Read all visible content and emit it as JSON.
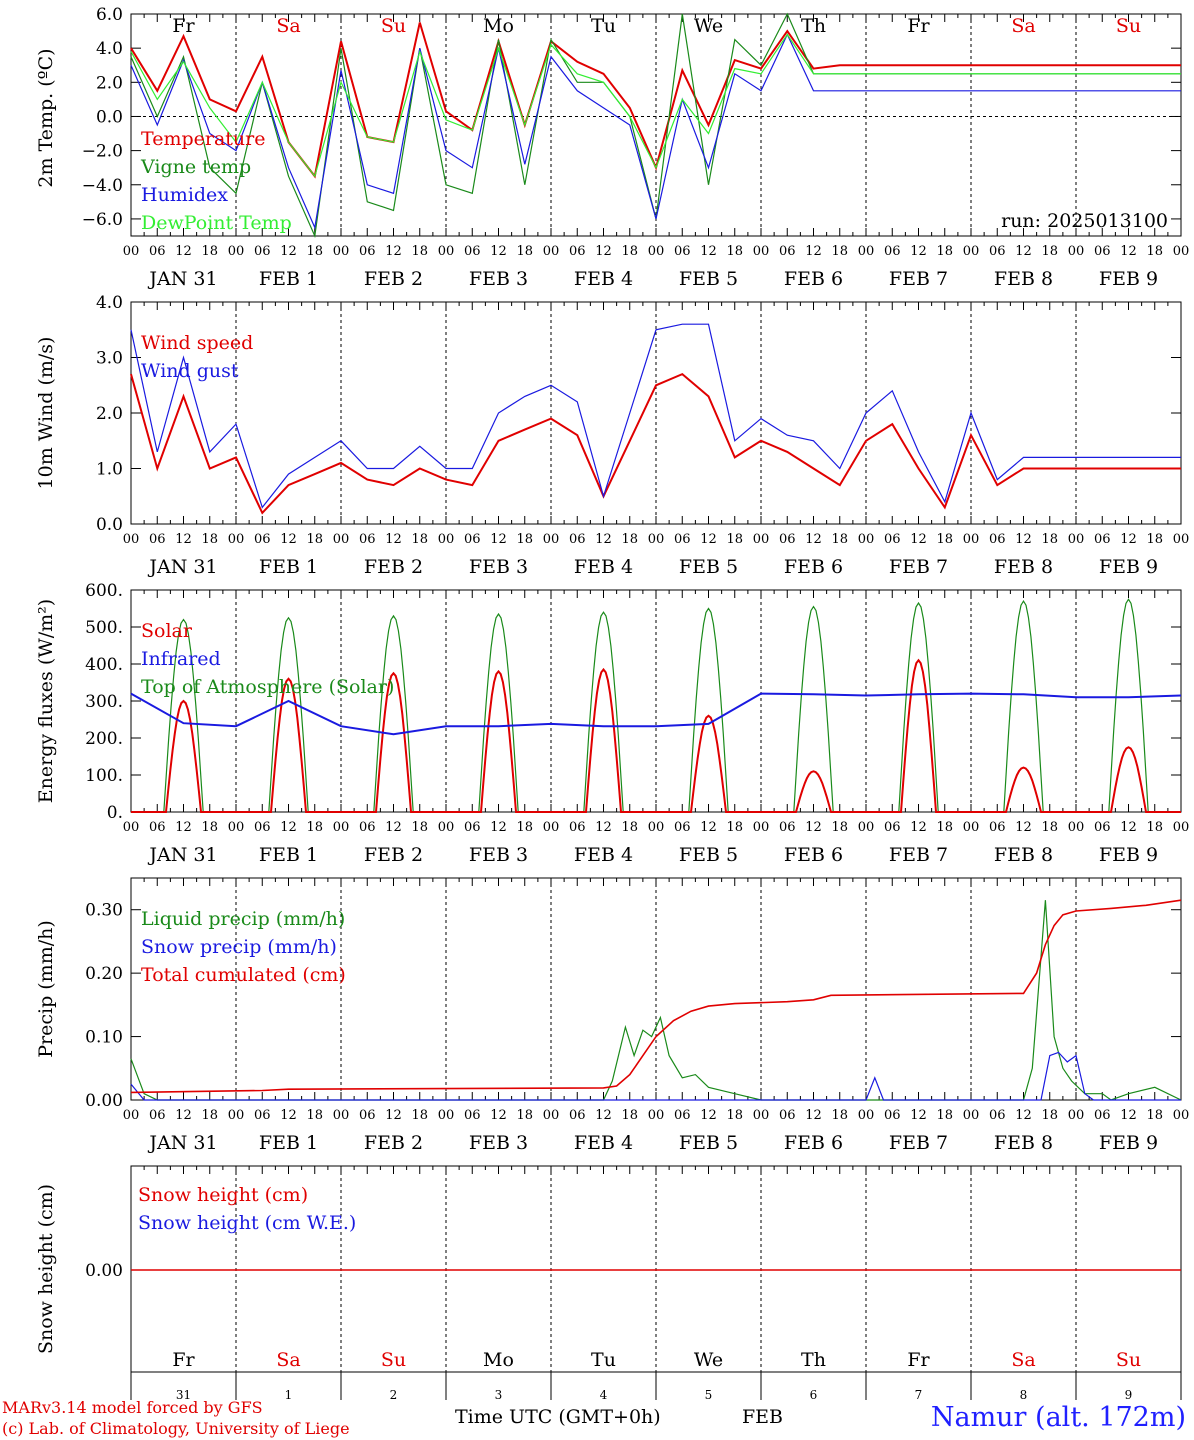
{
  "colors": {
    "red": "#e00000",
    "green": "#1a8a1a",
    "blue": "#1a1ae0",
    "lightgreen": "#33ee33",
    "axis": "#000000"
  },
  "day_ticks": [
    "00",
    "06",
    "12",
    "18"
  ],
  "date_labels": [
    "JAN 31",
    "FEB 1",
    "FEB 2",
    "FEB 3",
    "FEB 4",
    "FEB 5",
    "FEB 6",
    "FEB 7",
    "FEB 8",
    "FEB 9"
  ],
  "weekdays": [
    {
      "label": "Fr",
      "color": "#000000"
    },
    {
      "label": "Sa",
      "color": "#e00000"
    },
    {
      "label": "Su",
      "color": "#e00000"
    },
    {
      "label": "Mo",
      "color": "#000000"
    },
    {
      "label": "Tu",
      "color": "#000000"
    },
    {
      "label": "We",
      "color": "#000000"
    },
    {
      "label": "Th",
      "color": "#000000"
    },
    {
      "label": "Fr",
      "color": "#000000"
    },
    {
      "label": "Sa",
      "color": "#e00000"
    },
    {
      "label": "Su",
      "color": "#e00000"
    }
  ],
  "day_numbers": [
    "31",
    "1",
    "2",
    "3",
    "4",
    "5",
    "6",
    "7",
    "8",
    "9"
  ],
  "chart_data": [
    {
      "type": "line",
      "ylabel": "2m Temp. (ºC)",
      "ylim": [
        -7,
        6
      ],
      "yticks": [
        "6.0",
        "4.0",
        "2.0",
        "0.0",
        "−2.0",
        "−4.0",
        "−6.0"
      ],
      "annotation": "run: 2025013100",
      "x_hours": [
        0,
        6,
        12,
        18,
        24,
        30,
        36,
        42,
        48,
        54,
        60,
        66,
        72,
        78,
        84,
        90,
        96,
        102,
        108,
        114,
        120,
        126,
        132,
        138,
        144,
        150,
        156,
        162,
        168,
        174,
        180,
        186,
        192,
        198,
        204,
        210,
        216,
        222,
        228,
        234,
        240
      ],
      "series": [
        {
          "name": "Temperature",
          "color": "red",
          "values": [
            4.0,
            1.5,
            4.7,
            1.0,
            0.3,
            3.5,
            -1.5,
            -3.5,
            4.4,
            -1.2,
            -1.5,
            5.5,
            0.3,
            -0.8,
            4.4,
            -0.5,
            4.4,
            3.2,
            2.5,
            0.5,
            -3.0,
            2.7,
            -0.5,
            3.3,
            2.8,
            5.0,
            2.8,
            3.0,
            3.0,
            3.0,
            3.0,
            3.0,
            3.0,
            3.0,
            3.0,
            3.0,
            3.0,
            3.0,
            3.0,
            3.0,
            3.0
          ]
        },
        {
          "name": "Vigne temp",
          "color": "green",
          "values": [
            3.5,
            0.0,
            3.5,
            -3.0,
            -4.5,
            2.0,
            -3.5,
            -7.0,
            4.0,
            -5.0,
            -5.5,
            4.0,
            -4.0,
            -4.5,
            4.5,
            -4.0,
            4.5,
            2.0,
            2.0,
            0.0,
            -6.0,
            6.0,
            -4.0,
            4.5,
            3.0,
            6.0,
            2.5,
            2.5,
            2.5,
            2.5,
            2.5,
            2.5,
            2.5,
            2.5,
            2.5,
            2.5,
            2.5,
            2.5,
            2.5,
            2.5,
            2.5
          ]
        },
        {
          "name": "Humidex",
          "color": "blue",
          "values": [
            3.0,
            -0.5,
            3.3,
            -1.0,
            -2.0,
            2.0,
            -3.0,
            -6.5,
            2.7,
            -4.0,
            -4.5,
            4.0,
            -2.0,
            -3.0,
            4.0,
            -2.8,
            3.5,
            1.5,
            0.5,
            -0.5,
            -6.0,
            1.0,
            -3.0,
            2.5,
            1.5,
            4.8,
            1.5,
            1.5,
            1.5,
            1.5,
            1.5,
            1.5,
            1.5,
            1.5,
            1.5,
            1.5,
            1.5,
            1.5,
            1.5,
            1.5,
            1.5
          ]
        },
        {
          "name": "DewPoint Temp",
          "color": "lightgreen",
          "values": [
            3.8,
            1.0,
            3.2,
            0.5,
            -1.5,
            2.0,
            -1.5,
            -3.5,
            2.0,
            -1.2,
            -1.5,
            3.8,
            -0.2,
            -0.8,
            4.0,
            -0.5,
            4.2,
            2.5,
            2.0,
            0.0,
            -3.0,
            1.0,
            -1.0,
            2.8,
            2.5,
            4.8,
            2.5,
            2.5,
            2.5,
            2.5,
            2.5,
            2.5,
            2.5,
            2.5,
            2.5,
            2.5,
            2.5,
            2.5,
            2.5,
            2.5,
            2.5
          ]
        }
      ]
    },
    {
      "type": "line",
      "ylabel": "10m Wind (m/s)",
      "ylim": [
        0,
        4
      ],
      "yticks": [
        "4.0",
        "3.0",
        "2.0",
        "1.0",
        "0.0"
      ],
      "x_hours": [
        0,
        6,
        12,
        18,
        24,
        30,
        36,
        42,
        48,
        54,
        60,
        66,
        72,
        78,
        84,
        90,
        96,
        102,
        108,
        114,
        120,
        126,
        132,
        138,
        144,
        150,
        156,
        162,
        168,
        174,
        180,
        186,
        192,
        198,
        204,
        210,
        216,
        222,
        228,
        234,
        240
      ],
      "series": [
        {
          "name": "Wind speed",
          "color": "red",
          "values": [
            2.7,
            1.0,
            2.3,
            1.0,
            1.2,
            0.2,
            0.7,
            0.9,
            1.1,
            0.8,
            0.7,
            1.0,
            0.8,
            0.7,
            1.5,
            1.7,
            1.9,
            1.6,
            0.5,
            1.5,
            2.5,
            2.7,
            2.3,
            1.2,
            1.5,
            1.3,
            1.0,
            0.7,
            1.5,
            1.8,
            1.0,
            0.3,
            1.6,
            0.7,
            1.0,
            1.0,
            1.0,
            1.0,
            1.0,
            1.0,
            1.0
          ]
        },
        {
          "name": "Wind gust",
          "color": "blue",
          "values": [
            3.5,
            1.3,
            3.0,
            1.3,
            1.8,
            0.3,
            0.9,
            1.2,
            1.5,
            1.0,
            1.0,
            1.4,
            1.0,
            1.0,
            2.0,
            2.3,
            2.5,
            2.2,
            0.5,
            2.0,
            3.5,
            3.6,
            3.6,
            1.5,
            1.9,
            1.6,
            1.5,
            1.0,
            2.0,
            2.4,
            1.3,
            0.4,
            2.0,
            0.8,
            1.2,
            1.2,
            1.2,
            1.2,
            1.2,
            1.2,
            1.2
          ]
        }
      ]
    },
    {
      "type": "line",
      "ylabel": "Energy fluxes (W/m²)",
      "ylim": [
        0,
        600
      ],
      "yticks": [
        "600.",
        "500.",
        "400.",
        "300.",
        "200.",
        "100.",
        "0."
      ],
      "series": [
        {
          "name": "Solar",
          "color": "red",
          "day_peaks": [
            300,
            360,
            375,
            380,
            385,
            260,
            110,
            410,
            120,
            175
          ]
        },
        {
          "name": "Infrared",
          "color": "blue",
          "values": [
            320,
            240,
            232,
            300,
            232,
            210,
            232,
            232,
            238,
            232,
            232,
            238,
            320,
            318,
            315,
            318,
            320,
            318,
            310,
            310,
            315
          ]
        },
        {
          "name": "Top of Atmosphere (Solar)",
          "color": "green",
          "day_peaks": [
            520,
            525,
            530,
            535,
            540,
            550,
            555,
            565,
            570,
            575
          ]
        }
      ]
    },
    {
      "type": "line",
      "ylabel": "Precip (mm/h)",
      "ylim": [
        0,
        0.35
      ],
      "yticks": [
        "0.30",
        "0.20",
        "0.10",
        "0.00"
      ],
      "series": [
        {
          "name": "Liquid precip (mm/h)",
          "color": "green",
          "points": [
            [
              0,
              0.065
            ],
            [
              3,
              0.01
            ],
            [
              6,
              0
            ],
            [
              96,
              0
            ],
            [
              108,
              0
            ],
            [
              110,
              0.03
            ],
            [
              113,
              0.115
            ],
            [
              115,
              0.07
            ],
            [
              117,
              0.11
            ],
            [
              119,
              0.1
            ],
            [
              121,
              0.13
            ],
            [
              123,
              0.07
            ],
            [
              126,
              0.035
            ],
            [
              129,
              0.04
            ],
            [
              132,
              0.02
            ],
            [
              138,
              0.01
            ],
            [
              144,
              0
            ],
            [
              204,
              0
            ],
            [
              206,
              0.05
            ],
            [
              209,
              0.315
            ],
            [
              211,
              0.1
            ],
            [
              213,
              0.05
            ],
            [
              215,
              0.03
            ],
            [
              218,
              0.01
            ],
            [
              222,
              0.01
            ],
            [
              224,
              0
            ],
            [
              228,
              0.01
            ],
            [
              234,
              0.02
            ],
            [
              240,
              0
            ]
          ]
        },
        {
          "name": "Snow precip (mm/h)",
          "color": "blue",
          "points": [
            [
              0,
              0.025
            ],
            [
              3,
              0
            ],
            [
              168,
              0
            ],
            [
              170,
              0.035
            ],
            [
              172,
              0
            ],
            [
              208,
              0
            ],
            [
              210,
              0.07
            ],
            [
              212,
              0.075
            ],
            [
              214,
              0.06
            ],
            [
              216,
              0.07
            ],
            [
              218,
              0.01
            ],
            [
              220,
              0
            ],
            [
              240,
              0
            ]
          ]
        },
        {
          "name": "Total cumulated (cm)",
          "color": "red",
          "points": [
            [
              0,
              0.012
            ],
            [
              30,
              0.015
            ],
            [
              36,
              0.017
            ],
            [
              108,
              0.019
            ],
            [
              111,
              0.022
            ],
            [
              114,
              0.04
            ],
            [
              117,
              0.07
            ],
            [
              120,
              0.1
            ],
            [
              124,
              0.125
            ],
            [
              128,
              0.14
            ],
            [
              132,
              0.148
            ],
            [
              138,
              0.152
            ],
            [
              150,
              0.155
            ],
            [
              156,
              0.158
            ],
            [
              160,
              0.165
            ],
            [
              204,
              0.168
            ],
            [
              207,
              0.2
            ],
            [
              209,
              0.245
            ],
            [
              211,
              0.275
            ],
            [
              213,
              0.292
            ],
            [
              216,
              0.298
            ],
            [
              224,
              0.302
            ],
            [
              232,
              0.307
            ],
            [
              240,
              0.315
            ]
          ]
        }
      ]
    },
    {
      "type": "line",
      "ylabel": "Snow height (cm)",
      "ylim": [
        -1,
        1
      ],
      "yticks": [
        "0.00"
      ],
      "series": [
        {
          "name": "Snow height (cm)",
          "color": "red",
          "values": [
            0,
            0
          ]
        },
        {
          "name": "Snow height (cm W.E.)",
          "color": "blue",
          "values": [
            0,
            0
          ]
        }
      ]
    }
  ],
  "footer": {
    "credit1": "MARv3.14 model forced by GFS",
    "credit2": "(c) Lab. of Climatology, University of Liege",
    "xtitle": "Time UTC (GMT+0h)",
    "month": "FEB",
    "station": "Namur (alt. 172m)"
  }
}
